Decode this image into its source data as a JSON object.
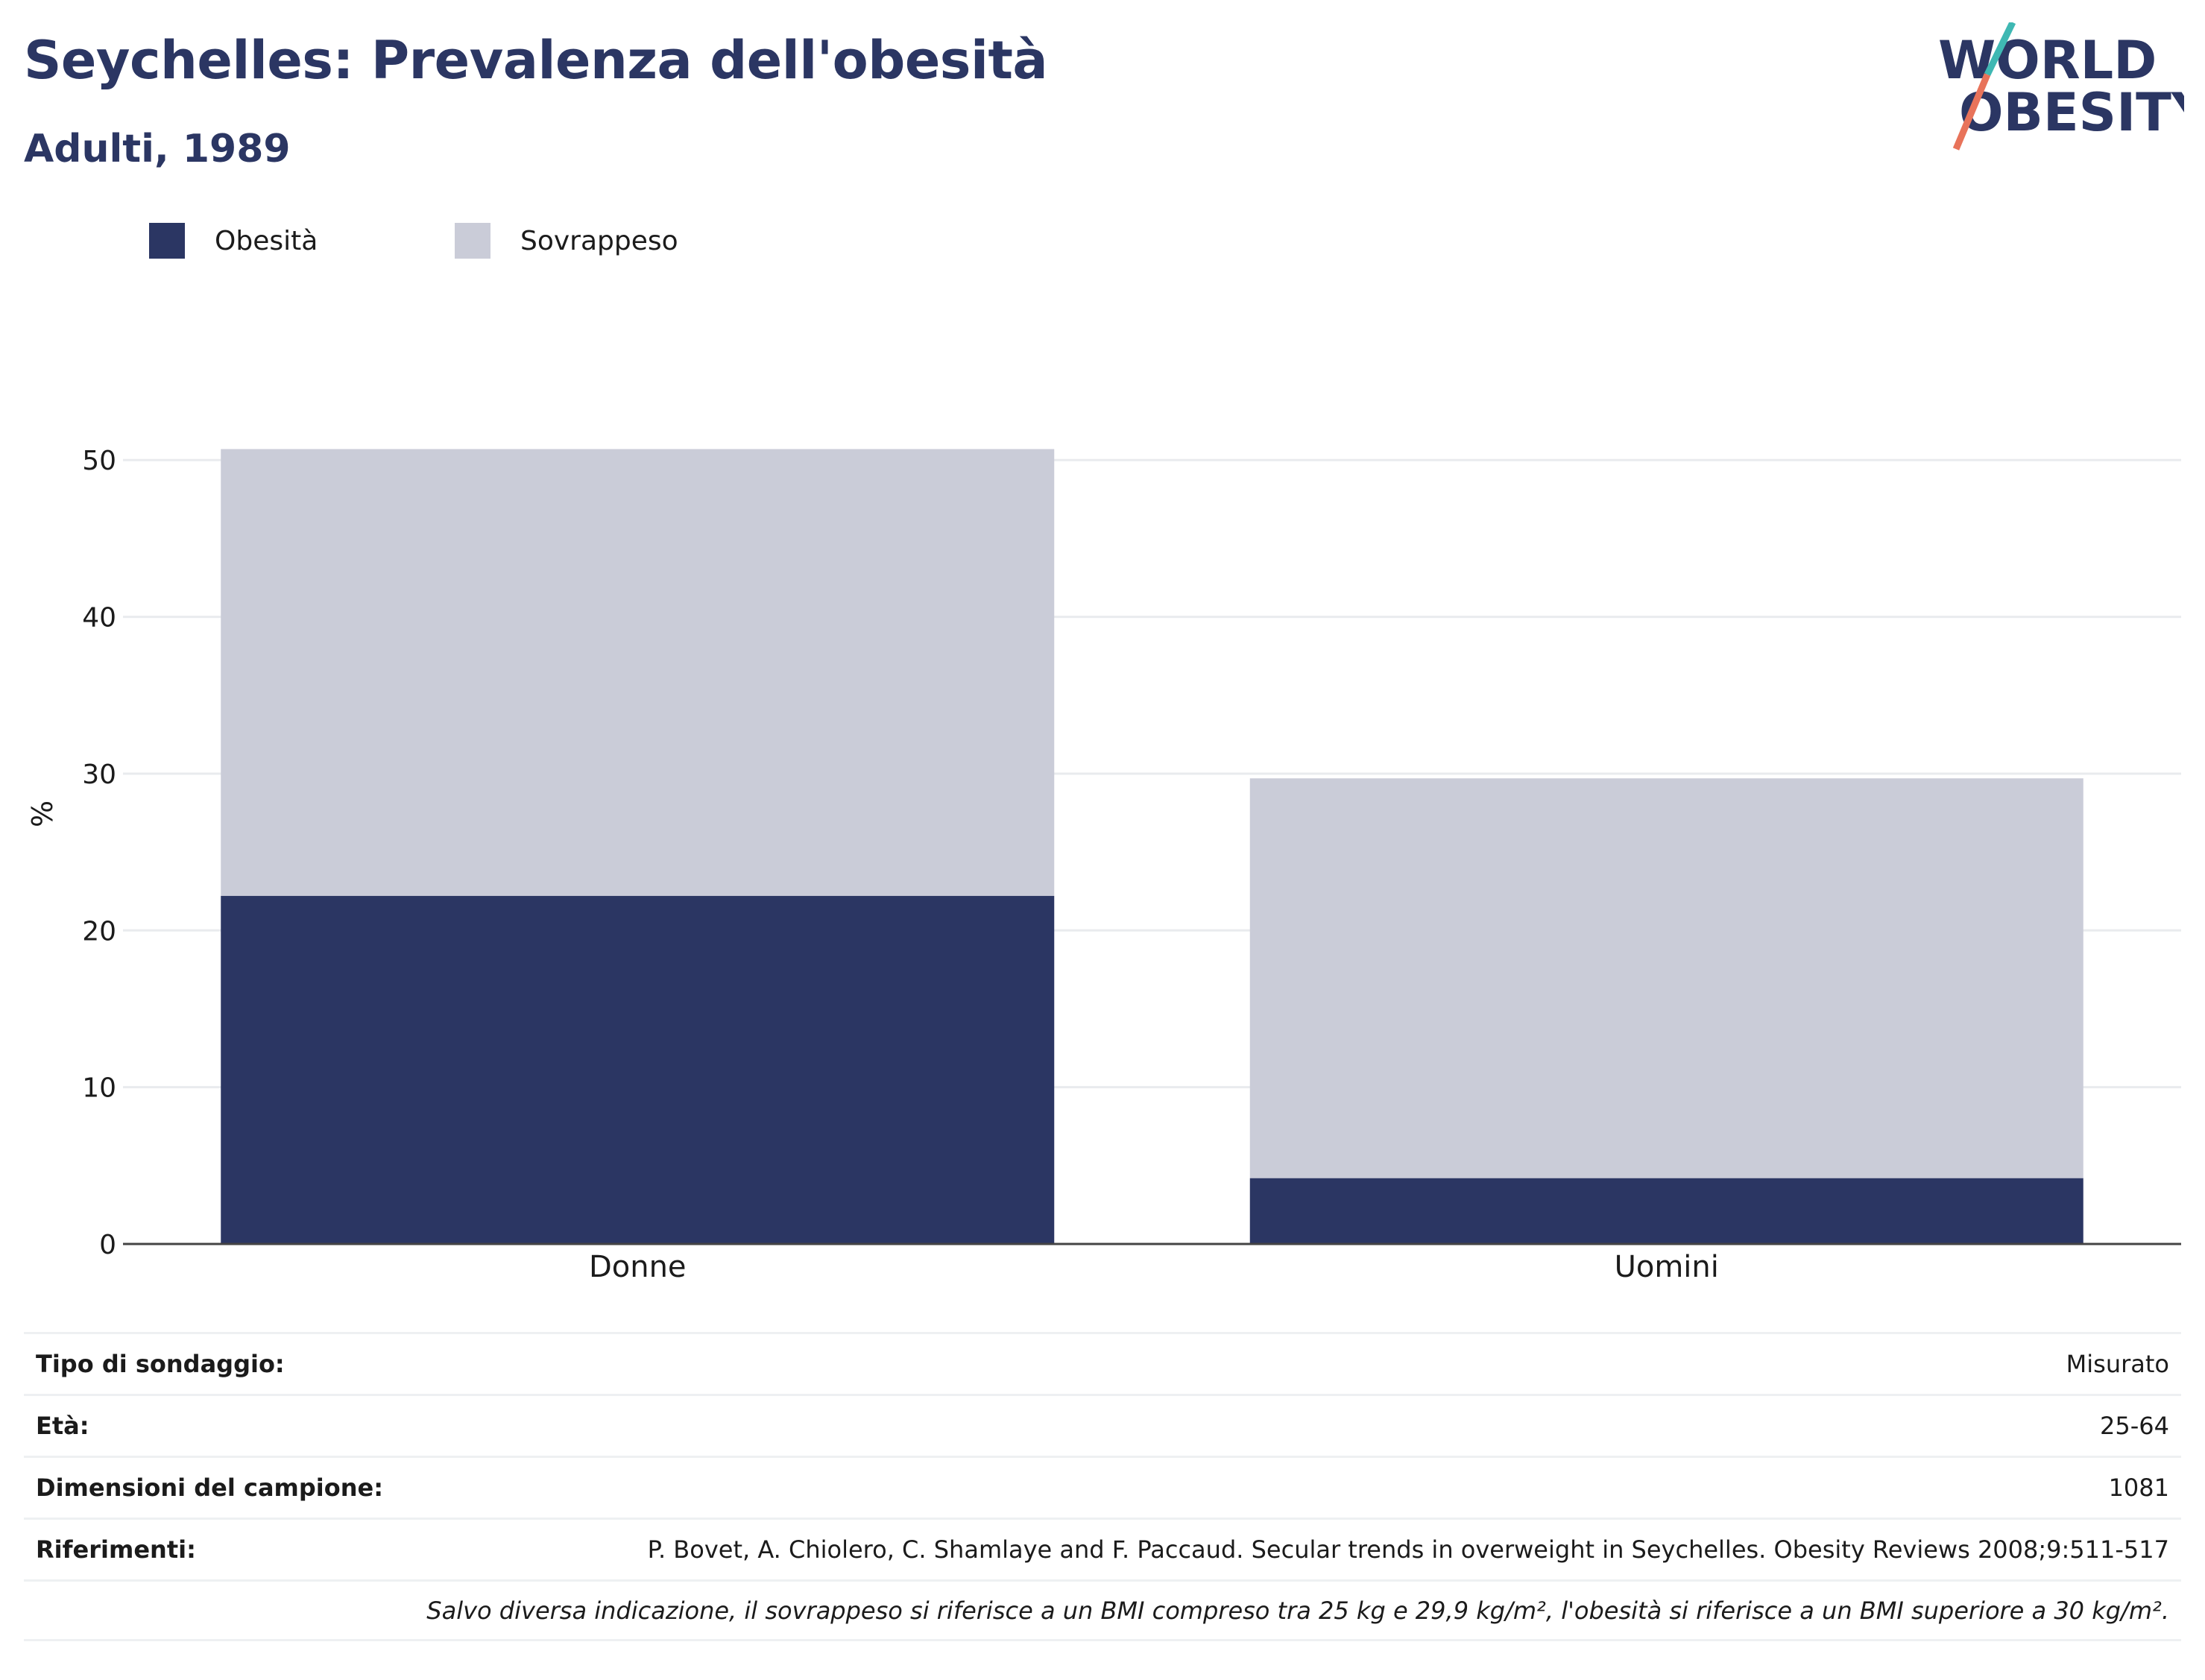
{
  "header": {
    "title": "Seychelles: Prevalenza dell'obesità",
    "subtitle": "Adulti, 1989"
  },
  "logo": {
    "line1": "WORLD",
    "line2": "OBESITY",
    "colors": {
      "text": "#2b3663",
      "slash_top": "#3fb8b3",
      "slash_bottom": "#e8735a"
    }
  },
  "chart_data": {
    "type": "bar",
    "stacked": true,
    "categories": [
      "Donne",
      "Uomini"
    ],
    "series": [
      {
        "name": "Obesità",
        "values": [
          22.2,
          4.2
        ],
        "color": "#2b3663"
      },
      {
        "name": "Sovrappeso",
        "values": [
          28.5,
          25.5
        ],
        "color": "#caccd8"
      }
    ],
    "ylabel": "%",
    "xlabel": "",
    "ylim": [
      0,
      57
    ],
    "yticks": [
      0,
      10,
      20,
      30,
      40,
      50
    ],
    "grid": true,
    "legend": "top-left"
  },
  "info": [
    {
      "key": "Tipo di sondaggio:",
      "value": "Misurato"
    },
    {
      "key": "Età:",
      "value": "25-64"
    },
    {
      "key": "Dimensioni del campione:",
      "value": "1081"
    },
    {
      "key": "Riferimenti:",
      "value": "P. Bovet, A. Chiolero, C. Shamlaye and F. Paccaud. Secular trends in overweight in Seychelles. Obesity Reviews 2008;9:511-517"
    }
  ],
  "note": "Salvo diversa indicazione, il sovrappeso si riferisce a un BMI compreso tra 25 kg e 29,9 kg/m², l'obesità si riferisce a un BMI superiore a 30 kg/m²."
}
